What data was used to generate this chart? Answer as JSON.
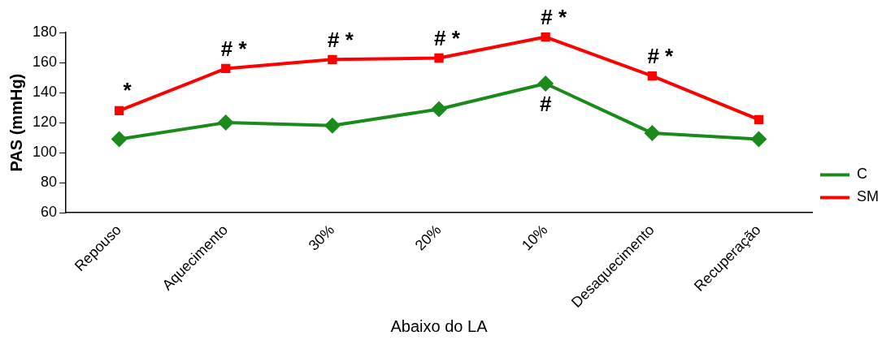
{
  "chart_data": {
    "type": "line",
    "xlabel": "Abaixo do LA",
    "ylabel": "PAS (mmHg)",
    "categories": [
      "Repouso",
      "Aquecimento",
      "30%",
      "20%",
      "10%",
      "Desaquecimento",
      "Recuperação"
    ],
    "series": [
      {
        "name": "C",
        "color": "#1a8a1a",
        "marker": "diamond",
        "values": [
          109,
          120,
          118,
          129,
          146,
          113,
          109
        ]
      },
      {
        "name": "SM",
        "color": "#ff0000",
        "marker": "square",
        "values": [
          128,
          156,
          162,
          163,
          177,
          151,
          122
        ]
      }
    ],
    "ylim": [
      60,
      180
    ],
    "yticks": [
      60,
      80,
      100,
      120,
      140,
      160,
      180
    ],
    "grid": false,
    "legend": "right",
    "line_style": "solid",
    "annotations": [
      {
        "text": "*",
        "x": "Repouso",
        "y": 128
      },
      {
        "text": "# *",
        "x": "Aquecimento",
        "y": 156
      },
      {
        "text": "# *",
        "x": "30%",
        "y": 162
      },
      {
        "text": "# *",
        "x": "20%",
        "y": 163
      },
      {
        "text": "# *",
        "x": "10%",
        "y": 177
      },
      {
        "text": "#",
        "x": "10%",
        "y": 146
      },
      {
        "text": "# *",
        "x": "Desaquecimento",
        "y": 151
      }
    ]
  }
}
